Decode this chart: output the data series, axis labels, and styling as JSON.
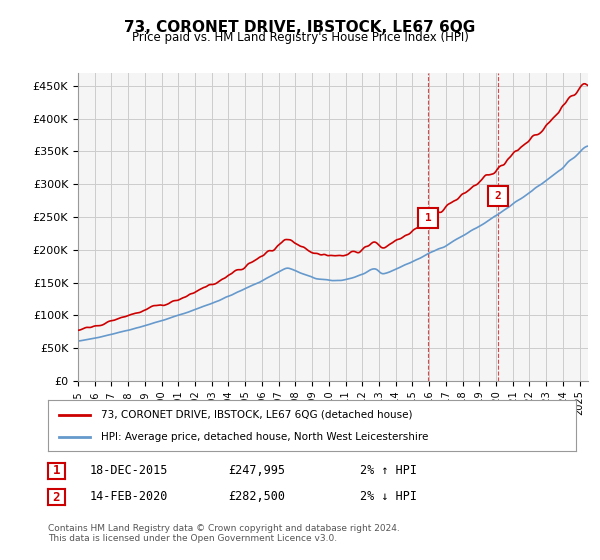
{
  "title": "73, CORONET DRIVE, IBSTOCK, LE67 6QG",
  "subtitle": "Price paid vs. HM Land Registry's House Price Index (HPI)",
  "ylabel_ticks": [
    "£0",
    "£50K",
    "£100K",
    "£150K",
    "£200K",
    "£250K",
    "£300K",
    "£350K",
    "£400K",
    "£450K"
  ],
  "ytick_values": [
    0,
    50000,
    100000,
    150000,
    200000,
    250000,
    300000,
    350000,
    400000,
    450000
  ],
  "ylim": [
    0,
    470000
  ],
  "xlim_start": 1995.0,
  "xlim_end": 2025.5,
  "red_line_color": "#cc0000",
  "blue_line_color": "#6699cc",
  "grid_color": "#cccccc",
  "bg_color": "#ffffff",
  "plot_bg_color": "#f5f5f5",
  "marker1_x": 2015.96,
  "marker1_y": 247995,
  "marker2_x": 2020.12,
  "marker2_y": 282500,
  "marker1_label": "1",
  "marker2_label": "2",
  "dashed_line_color": "#cc0000",
  "legend_line1": "73, CORONET DRIVE, IBSTOCK, LE67 6QG (detached house)",
  "legend_line2": "HPI: Average price, detached house, North West Leicestershire",
  "table_row1": [
    "1",
    "18-DEC-2015",
    "£247,995",
    "2% ↑ HPI"
  ],
  "table_row2": [
    "2",
    "14-FEB-2020",
    "£282,500",
    "2% ↓ HPI"
  ],
  "footnote": "Contains HM Land Registry data © Crown copyright and database right 2024.\nThis data is licensed under the Open Government Licence v3.0.",
  "xtick_years": [
    1995,
    1996,
    1997,
    1998,
    1999,
    2000,
    2001,
    2002,
    2003,
    2004,
    2005,
    2006,
    2007,
    2008,
    2009,
    2010,
    2011,
    2012,
    2013,
    2014,
    2015,
    2016,
    2017,
    2018,
    2019,
    2020,
    2021,
    2022,
    2023,
    2024,
    2025
  ]
}
